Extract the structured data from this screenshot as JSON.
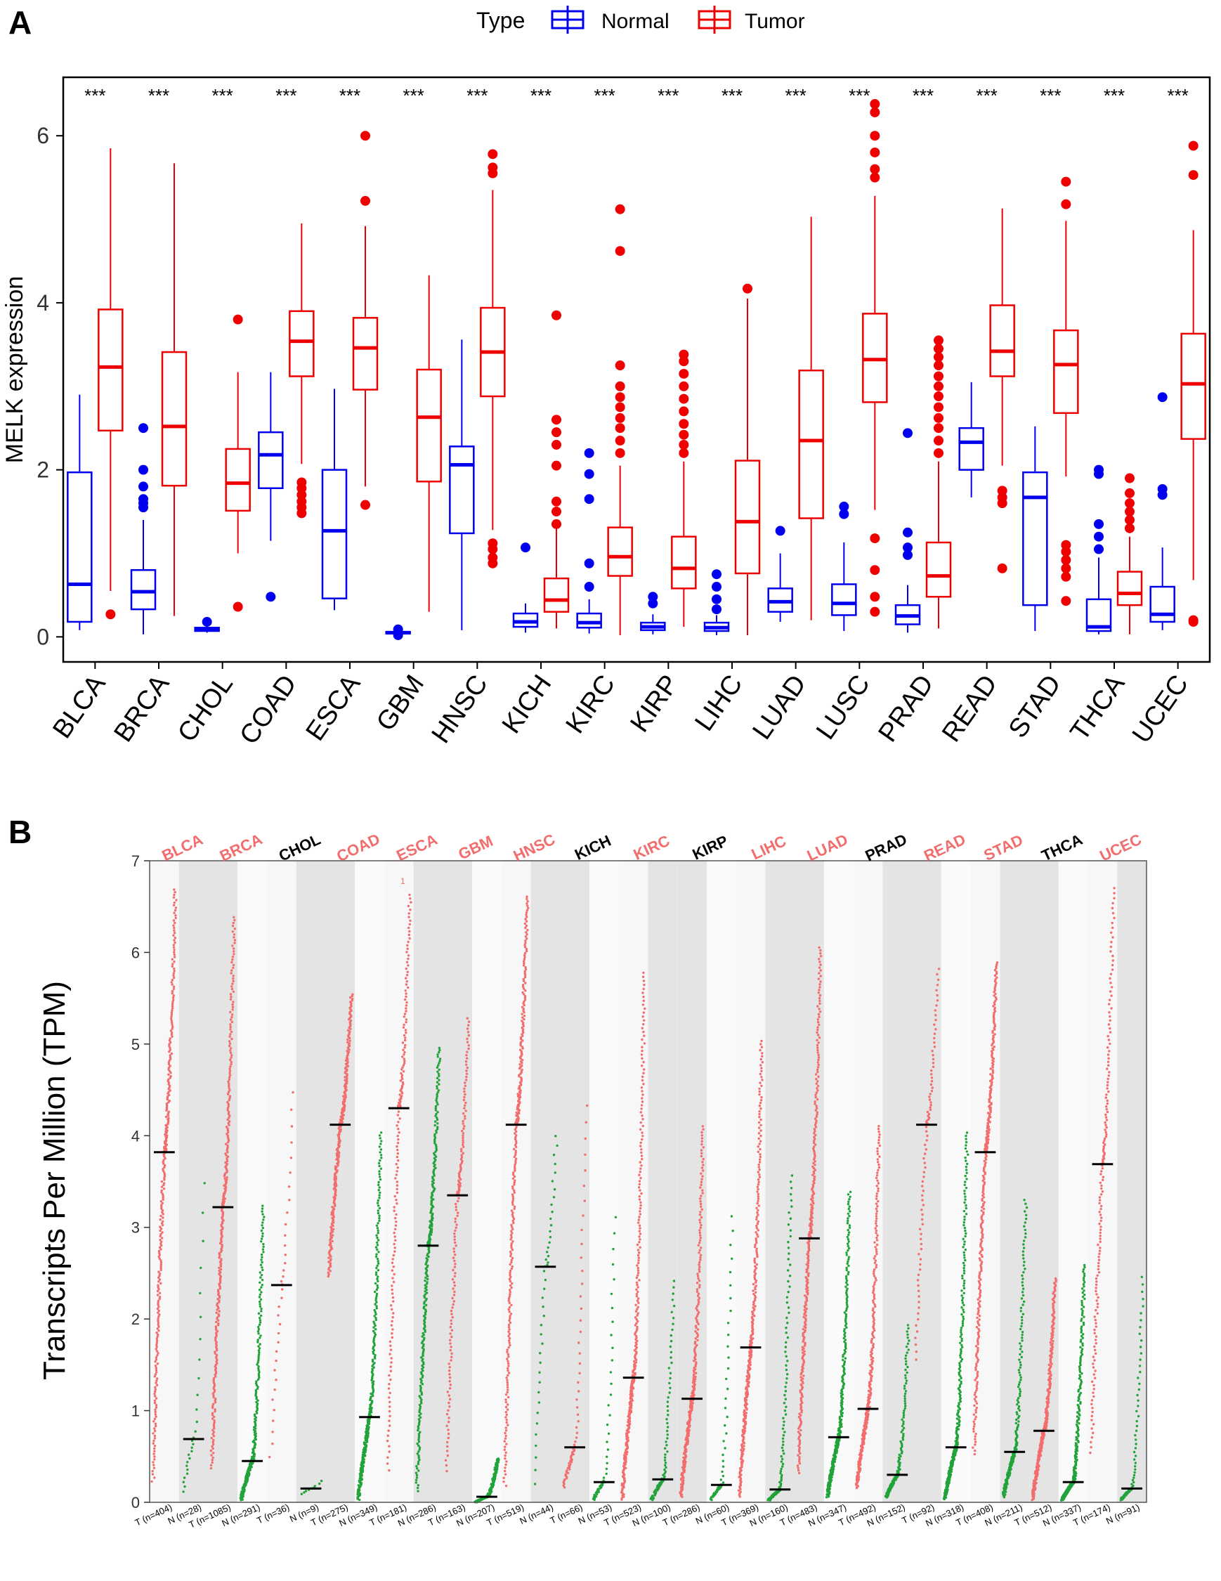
{
  "panels": [
    {
      "letter": "A",
      "legend": {
        "title": "Type",
        "normal": "Normal",
        "tumor": "Tumor"
      },
      "colors": {
        "normal": "#0000ee",
        "tumor": "#ee0000"
      }
    },
    {
      "letter": "B",
      "colors": {
        "tumor": "#f26d6d",
        "normal": "#22a33a",
        "shade": "#e4e4e4",
        "highlight": "#f26d6d",
        "plain": "#000000"
      }
    }
  ],
  "chart_data": [
    {
      "type": "box",
      "title": "",
      "xlabel": "",
      "ylabel": "MELK expression",
      "ylim": [
        -0.3,
        6.7
      ],
      "yticks": [
        0,
        2,
        4,
        6
      ],
      "legend_placement": "top",
      "significance_label": "***",
      "categories": [
        "BLCA",
        "BRCA",
        "CHOL",
        "COAD",
        "ESCA",
        "GBM",
        "HNSC",
        "KICH",
        "KIRC",
        "KIRP",
        "LIHC",
        "LUAD",
        "LUSC",
        "PRAD",
        "READ",
        "STAD",
        "THCA",
        "UCEC"
      ],
      "series": [
        {
          "name": "Normal",
          "boxes": [
            {
              "min": 0.08,
              "q1": 0.18,
              "median": 0.63,
              "q3": 1.97,
              "max": 2.9,
              "outliers": []
            },
            {
              "min": 0.03,
              "q1": 0.33,
              "median": 0.54,
              "q3": 0.8,
              "max": 1.4,
              "outliers": [
                1.55,
                1.6,
                1.65,
                1.8,
                2.0,
                2.5
              ]
            },
            {
              "min": 0.05,
              "q1": 0.07,
              "median": 0.09,
              "q3": 0.11,
              "max": 0.13,
              "outliers": [
                0.18
              ]
            },
            {
              "min": 1.15,
              "q1": 1.78,
              "median": 2.18,
              "q3": 2.45,
              "max": 3.17,
              "outliers": [
                0.48
              ]
            },
            {
              "min": 0.32,
              "q1": 0.46,
              "median": 1.27,
              "q3": 2.0,
              "max": 2.97,
              "outliers": []
            },
            {
              "min": 0.01,
              "q1": 0.04,
              "median": 0.05,
              "q3": 0.06,
              "max": 0.07,
              "outliers": [
                0.02,
                0.09
              ]
            },
            {
              "min": 0.08,
              "q1": 1.24,
              "median": 2.06,
              "q3": 2.28,
              "max": 3.56,
              "outliers": []
            },
            {
              "min": 0.05,
              "q1": 0.12,
              "median": 0.18,
              "q3": 0.28,
              "max": 0.4,
              "outliers": [
                1.07
              ]
            },
            {
              "min": 0.04,
              "q1": 0.11,
              "median": 0.17,
              "q3": 0.28,
              "max": 0.45,
              "outliers": [
                0.6,
                0.88,
                1.65,
                1.95,
                2.2
              ]
            },
            {
              "min": 0.03,
              "q1": 0.08,
              "median": 0.12,
              "q3": 0.17,
              "max": 0.27,
              "outliers": [
                0.4,
                0.48
              ]
            },
            {
              "min": 0.02,
              "q1": 0.07,
              "median": 0.11,
              "q3": 0.17,
              "max": 0.26,
              "outliers": [
                0.33,
                0.45,
                0.6,
                0.75
              ]
            },
            {
              "min": 0.18,
              "q1": 0.3,
              "median": 0.42,
              "q3": 0.58,
              "max": 1.0,
              "outliers": [
                1.27
              ]
            },
            {
              "min": 0.07,
              "q1": 0.26,
              "median": 0.4,
              "q3": 0.63,
              "max": 1.13,
              "outliers": [
                1.47,
                1.56
              ]
            },
            {
              "min": 0.05,
              "q1": 0.15,
              "median": 0.25,
              "q3": 0.38,
              "max": 0.62,
              "outliers": [
                0.98,
                1.07,
                1.25,
                2.44
              ]
            },
            {
              "min": 1.67,
              "q1": 2.0,
              "median": 2.33,
              "q3": 2.5,
              "max": 3.05,
              "outliers": []
            },
            {
              "min": 0.07,
              "q1": 0.38,
              "median": 1.67,
              "q3": 1.97,
              "max": 2.52,
              "outliers": []
            },
            {
              "min": 0.03,
              "q1": 0.07,
              "median": 0.12,
              "q3": 0.45,
              "max": 0.95,
              "outliers": [
                1.05,
                1.2,
                1.35,
                1.95,
                2.0
              ]
            },
            {
              "min": 0.08,
              "q1": 0.18,
              "median": 0.27,
              "q3": 0.6,
              "max": 1.07,
              "outliers": [
                1.7,
                1.77,
                2.87
              ]
            }
          ]
        },
        {
          "name": "Tumor",
          "boxes": [
            {
              "min": 0.55,
              "q1": 2.47,
              "median": 3.23,
              "q3": 3.92,
              "max": 5.85,
              "outliers": [
                0.27
              ]
            },
            {
              "min": 0.25,
              "q1": 1.81,
              "median": 2.52,
              "q3": 3.41,
              "max": 5.67,
              "outliers": []
            },
            {
              "min": 1.0,
              "q1": 1.51,
              "median": 1.84,
              "q3": 2.25,
              "max": 3.17,
              "outliers": [
                0.36,
                3.8
              ]
            },
            {
              "min": 2.07,
              "q1": 3.12,
              "median": 3.54,
              "q3": 3.9,
              "max": 4.95,
              "outliers": [
                1.48,
                1.55,
                1.62,
                1.7,
                1.78,
                1.85
              ]
            },
            {
              "min": 1.8,
              "q1": 2.96,
              "median": 3.46,
              "q3": 3.82,
              "max": 4.92,
              "outliers": [
                1.58,
                5.22,
                6.0
              ]
            },
            {
              "min": 0.3,
              "q1": 1.86,
              "median": 2.63,
              "q3": 3.2,
              "max": 4.33,
              "outliers": []
            },
            {
              "min": 1.28,
              "q1": 2.88,
              "median": 3.41,
              "q3": 3.94,
              "max": 5.35,
              "outliers": [
                0.88,
                0.95,
                1.05,
                1.12,
                5.55,
                5.62,
                5.78
              ]
            },
            {
              "min": 0.1,
              "q1": 0.3,
              "median": 0.44,
              "q3": 0.7,
              "max": 1.3,
              "outliers": [
                1.35,
                1.5,
                1.62,
                2.05,
                2.3,
                2.45,
                2.6,
                3.85
              ]
            },
            {
              "min": 0.02,
              "q1": 0.73,
              "median": 0.96,
              "q3": 1.31,
              "max": 2.05,
              "outliers": [
                2.2,
                2.35,
                2.5,
                2.62,
                2.75,
                2.87,
                3.0,
                3.25,
                4.62,
                5.12
              ]
            },
            {
              "min": 0.12,
              "q1": 0.58,
              "median": 0.82,
              "q3": 1.2,
              "max": 2.1,
              "outliers": [
                2.2,
                2.3,
                2.42,
                2.55,
                2.7,
                2.85,
                3.0,
                3.15,
                3.3,
                3.38
              ]
            },
            {
              "min": 0.02,
              "q1": 0.76,
              "median": 1.38,
              "q3": 2.11,
              "max": 4.05,
              "outliers": [
                4.17
              ]
            },
            {
              "min": 0.2,
              "q1": 1.42,
              "median": 2.35,
              "q3": 3.19,
              "max": 5.03,
              "outliers": []
            },
            {
              "min": 1.52,
              "q1": 2.81,
              "median": 3.32,
              "q3": 3.87,
              "max": 5.28,
              "outliers": [
                0.3,
                0.48,
                0.8,
                1.18,
                5.5,
                5.6,
                5.8,
                6.0,
                6.28,
                6.38
              ]
            },
            {
              "min": 0.1,
              "q1": 0.48,
              "median": 0.73,
              "q3": 1.13,
              "max": 2.1,
              "outliers": [
                2.2,
                2.35,
                2.5,
                2.62,
                2.75,
                2.88,
                3.0,
                3.12,
                3.25,
                3.35,
                3.45,
                3.55
              ]
            },
            {
              "min": 2.05,
              "q1": 3.12,
              "median": 3.42,
              "q3": 3.97,
              "max": 5.13,
              "outliers": [
                0.82,
                1.6,
                1.67,
                1.75
              ]
            },
            {
              "min": 1.92,
              "q1": 2.68,
              "median": 3.26,
              "q3": 3.67,
              "max": 4.98,
              "outliers": [
                0.43,
                0.72,
                0.82,
                0.92,
                1.02,
                1.1,
                5.18,
                5.45
              ]
            },
            {
              "min": 0.03,
              "q1": 0.38,
              "median": 0.52,
              "q3": 0.78,
              "max": 1.2,
              "outliers": [
                1.3,
                1.4,
                1.5,
                1.6,
                1.72,
                1.9
              ]
            },
            {
              "min": 0.68,
              "q1": 2.37,
              "median": 3.03,
              "q3": 3.63,
              "max": 4.87,
              "outliers": [
                0.18,
                0.2,
                5.53,
                5.88
              ]
            }
          ]
        }
      ]
    },
    {
      "type": "scatter",
      "title": "",
      "xlabel": "",
      "ylabel": "Transcripts Per Million (TPM)",
      "ylim": [
        0,
        7
      ],
      "yticks": [
        0,
        1,
        2,
        3,
        4,
        5,
        6,
        7
      ],
      "annotation": "1",
      "cancers": [
        {
          "name": "BLCA",
          "highlighted": true,
          "tumor": {
            "label": "T (n=404)",
            "median": 3.82,
            "min": 0.2,
            "max": 6.7,
            "n": 404
          },
          "normal": {
            "label": "N (n=28)",
            "median": 0.69,
            "min": 0.08,
            "max": 3.65,
            "n": 28
          }
        },
        {
          "name": "BRCA",
          "highlighted": true,
          "tumor": {
            "label": "T (n=1085)",
            "median": 3.22,
            "min": 0.35,
            "max": 6.4,
            "n": 1085
          },
          "normal": {
            "label": "N (n=291)",
            "median": 0.45,
            "min": 0.02,
            "max": 3.25,
            "n": 291
          }
        },
        {
          "name": "CHOL",
          "highlighted": false,
          "tumor": {
            "label": "T (n=36)",
            "median": 2.37,
            "min": 0.4,
            "max": 4.57,
            "n": 36
          },
          "normal": {
            "label": "N (n=9)",
            "median": 0.15,
            "min": 0.08,
            "max": 0.25,
            "n": 9
          }
        },
        {
          "name": "COAD",
          "highlighted": true,
          "tumor": {
            "label": "T (n=275)",
            "median": 4.12,
            "min": 2.45,
            "max": 5.55,
            "n": 275
          },
          "normal": {
            "label": "N (n=349)",
            "median": 0.93,
            "min": 0.02,
            "max": 4.05,
            "n": 349
          }
        },
        {
          "name": "ESCA",
          "highlighted": true,
          "tumor": {
            "label": "T (n=181)",
            "median": 4.3,
            "min": 0.3,
            "max": 6.65,
            "n": 181
          },
          "normal": {
            "label": "N (n=286)",
            "median": 2.8,
            "min": 0.1,
            "max": 4.97,
            "n": 286
          }
        },
        {
          "name": "GBM",
          "highlighted": true,
          "tumor": {
            "label": "T (n=163)",
            "median": 3.35,
            "min": 0.3,
            "max": 5.3,
            "n": 163
          },
          "normal": {
            "label": "N (n=207)",
            "median": 0.06,
            "min": 0.0,
            "max": 0.48,
            "n": 207
          }
        },
        {
          "name": "HNSC",
          "highlighted": true,
          "tumor": {
            "label": "T (n=519)",
            "median": 4.12,
            "min": 0.15,
            "max": 6.62,
            "n": 519
          },
          "normal": {
            "label": "N (n=44)",
            "median": 2.57,
            "min": 0.1,
            "max": 4.05,
            "n": 44
          }
        },
        {
          "name": "KICH",
          "highlighted": false,
          "tumor": {
            "label": "T (n=66)",
            "median": 0.6,
            "min": 0.15,
            "max": 4.42,
            "n": 66
          },
          "normal": {
            "label": "N (n=53)",
            "median": 0.22,
            "min": 0.02,
            "max": 3.2,
            "n": 53
          }
        },
        {
          "name": "KIRC",
          "highlighted": true,
          "tumor": {
            "label": "T (n=523)",
            "median": 1.36,
            "min": 0.02,
            "max": 5.8,
            "n": 523
          },
          "normal": {
            "label": "N (n=100)",
            "median": 0.25,
            "min": 0.02,
            "max": 2.45,
            "n": 100
          }
        },
        {
          "name": "KIRP",
          "highlighted": false,
          "tumor": {
            "label": "T (n=286)",
            "median": 1.13,
            "min": 0.05,
            "max": 4.12,
            "n": 286
          },
          "normal": {
            "label": "N (n=60)",
            "median": 0.19,
            "min": 0.02,
            "max": 3.2,
            "n": 60
          }
        },
        {
          "name": "LIHC",
          "highlighted": true,
          "tumor": {
            "label": "T (n=369)",
            "median": 1.69,
            "min": 0.05,
            "max": 5.05,
            "n": 369
          },
          "normal": {
            "label": "N (n=160)",
            "median": 0.14,
            "min": 0.02,
            "max": 3.6,
            "n": 160
          }
        },
        {
          "name": "LUAD",
          "highlighted": true,
          "tumor": {
            "label": "T (n=483)",
            "median": 2.88,
            "min": 0.3,
            "max": 6.07,
            "n": 483
          },
          "normal": {
            "label": "N (n=347)",
            "median": 0.71,
            "min": 0.05,
            "max": 3.4,
            "n": 347
          }
        },
        {
          "name": "PRAD",
          "highlighted": false,
          "tumor": {
            "label": "T (n=492)",
            "median": 1.02,
            "min": 0.15,
            "max": 4.12,
            "n": 492
          },
          "normal": {
            "label": "N (n=152)",
            "median": 0.3,
            "min": 0.05,
            "max": 1.95,
            "n": 152
          }
        },
        {
          "name": "READ",
          "highlighted": true,
          "tumor": {
            "label": "T (n=92)",
            "median": 4.12,
            "min": 1.5,
            "max": 5.85,
            "n": 92
          },
          "normal": {
            "label": "N (n=318)",
            "median": 0.6,
            "min": 0.03,
            "max": 4.05,
            "n": 318
          }
        },
        {
          "name": "STAD",
          "highlighted": true,
          "tumor": {
            "label": "T (n=408)",
            "median": 3.82,
            "min": 0.5,
            "max": 5.9,
            "n": 408
          },
          "normal": {
            "label": "N (n=211)",
            "median": 0.55,
            "min": 0.05,
            "max": 3.32,
            "n": 211
          }
        },
        {
          "name": "THCA",
          "highlighted": false,
          "tumor": {
            "label": "T (n=512)",
            "median": 0.78,
            "min": 0.02,
            "max": 2.45,
            "n": 512
          },
          "normal": {
            "label": "N (n=337)",
            "median": 0.22,
            "min": 0.02,
            "max": 2.6,
            "n": 337
          }
        },
        {
          "name": "UCEC",
          "highlighted": true,
          "tumor": {
            "label": "T (n=174)",
            "median": 3.69,
            "min": 0.5,
            "max": 6.73,
            "n": 174
          },
          "normal": {
            "label": "N (n=91)",
            "median": 0.15,
            "min": 0.02,
            "max": 2.5,
            "n": 91
          }
        }
      ]
    }
  ]
}
